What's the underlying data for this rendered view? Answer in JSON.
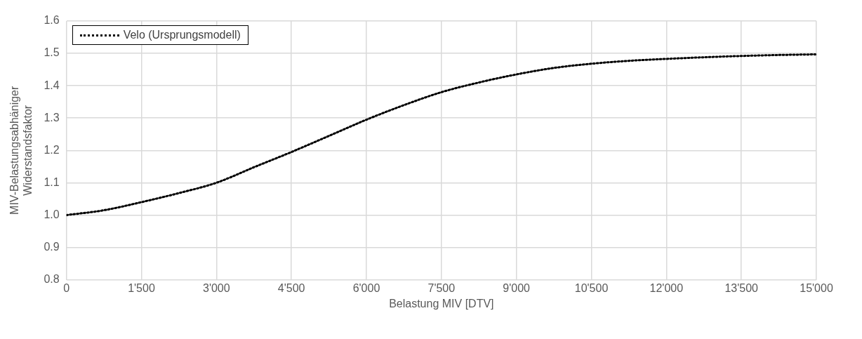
{
  "chart_data": {
    "type": "line",
    "xlabel": "Belastung MIV [DTV]",
    "ylabel": "MIV-Belastungsabhäniger Widerstandsfaktor",
    "x": [
      0,
      750,
      1500,
      2250,
      3000,
      3750,
      4500,
      5250,
      6000,
      6750,
      7500,
      8250,
      9000,
      9750,
      10500,
      11250,
      12000,
      12750,
      13500,
      14250,
      15000
    ],
    "series": [
      {
        "name": "Velo (Ursprungsmodell)",
        "color": "#000000",
        "values": [
          1.0,
          1.015,
          1.04,
          1.068,
          1.1,
          1.148,
          1.195,
          1.245,
          1.295,
          1.34,
          1.38,
          1.41,
          1.435,
          1.455,
          1.468,
          1.477,
          1.483,
          1.488,
          1.492,
          1.495,
          1.497
        ]
      }
    ],
    "xlim": [
      0,
      15000
    ],
    "xticks": [
      0,
      {
        "value": 1500,
        "label": "1'500"
      },
      {
        "value": 3000,
        "label": "3'000"
      },
      {
        "value": 4500,
        "label": "4'500"
      },
      {
        "value": 6000,
        "label": "6'000"
      },
      {
        "value": 7500,
        "label": "7'500"
      },
      {
        "value": 9000,
        "label": "9'000"
      },
      {
        "value": 10500,
        "label": "10'500"
      },
      {
        "value": 12000,
        "label": "12'000"
      },
      {
        "value": 13500,
        "label": "13'500"
      },
      {
        "value": 15000,
        "label": "15'000"
      }
    ],
    "ylim": [
      0.8,
      1.6
    ],
    "yticks": [
      0.8,
      0.9,
      {
        "value": 1,
        "label": "1.0"
      },
      1.1,
      1.2,
      1.3,
      1.4,
      1.5,
      1.6
    ],
    "grid": true,
    "legend": "top left",
    "marker": "none",
    "line_style": "dotted"
  }
}
